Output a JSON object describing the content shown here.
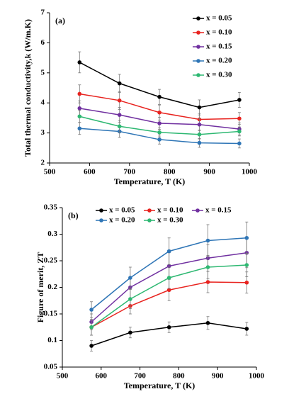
{
  "chart_data": [
    {
      "type": "line",
      "annotation": "(a)",
      "x_label": "Temperature,  T (K)",
      "y_label": "Total thermal conductivity,k  (W/m.K)",
      "x": [
        575,
        675,
        775,
        875,
        975
      ],
      "xlim": [
        500,
        1000
      ],
      "xticks": [
        500,
        600,
        700,
        800,
        900,
        1000
      ],
      "ylim": [
        2,
        7
      ],
      "yticks": [
        2,
        3,
        4,
        5,
        6,
        7
      ],
      "legend": "upper right",
      "series": [
        {
          "name": "x = 0.05",
          "color": "#000000",
          "values": [
            5.35,
            4.65,
            4.2,
            3.85,
            4.1
          ],
          "errors": [
            0.35,
            0.3,
            0.25,
            0.25,
            0.25
          ]
        },
        {
          "name": "x = 0.10",
          "color": "#e8231f",
          "values": [
            4.3,
            4.08,
            3.68,
            3.45,
            3.48
          ],
          "errors": [
            0.3,
            0.3,
            0.25,
            0.2,
            0.2
          ]
        },
        {
          "name": "x = 0.15",
          "color": "#7030a0",
          "values": [
            3.82,
            3.6,
            3.32,
            3.28,
            3.13
          ],
          "errors": [
            0.25,
            0.25,
            0.2,
            0.2,
            0.2
          ]
        },
        {
          "name": "x = 0.20",
          "color": "#2e75b6",
          "values": [
            3.15,
            3.05,
            2.78,
            2.67,
            2.65
          ],
          "errors": [
            0.2,
            0.2,
            0.15,
            0.15,
            0.15
          ]
        },
        {
          "name": "x = 0.30",
          "color": "#2eb872",
          "values": [
            3.55,
            3.22,
            3.02,
            2.95,
            3.05
          ],
          "errors": [
            0.2,
            0.2,
            0.15,
            0.15,
            0.15
          ]
        }
      ]
    },
    {
      "type": "line",
      "annotation": "(b)",
      "x_label": "Temperature,  T (K)",
      "y_label": "Figure of merit,  ZT",
      "x": [
        575,
        675,
        775,
        875,
        975
      ],
      "xlim": [
        500,
        1000
      ],
      "xticks": [
        500,
        600,
        700,
        800,
        900,
        1000
      ],
      "ylim": [
        0.05,
        0.35
      ],
      "yticks": [
        0.05,
        0.1,
        0.15,
        0.2,
        0.25,
        0.3,
        0.35
      ],
      "legend": "upper center",
      "series": [
        {
          "name": "x = 0.05",
          "color": "#000000",
          "values": [
            0.09,
            0.115,
            0.125,
            0.133,
            0.122
          ],
          "errors": [
            0.01,
            0.01,
            0.01,
            0.012,
            0.012
          ]
        },
        {
          "name": "x = 0.10",
          "color": "#e8231f",
          "values": [
            0.125,
            0.165,
            0.195,
            0.21,
            0.209
          ],
          "errors": [
            0.015,
            0.015,
            0.02,
            0.02,
            0.02
          ]
        },
        {
          "name": "x = 0.15",
          "color": "#7030a0",
          "values": [
            0.135,
            0.2,
            0.24,
            0.255,
            0.265
          ],
          "errors": [
            0.015,
            0.02,
            0.025,
            0.025,
            0.028
          ]
        },
        {
          "name": "x = 0.20",
          "color": "#2e75b6",
          "values": [
            0.158,
            0.218,
            0.268,
            0.288,
            0.293
          ],
          "errors": [
            0.015,
            0.02,
            0.025,
            0.03,
            0.03
          ]
        },
        {
          "name": "x = 0.30",
          "color": "#2eb872",
          "values": [
            0.125,
            0.178,
            0.218,
            0.238,
            0.242
          ],
          "errors": [
            0.015,
            0.018,
            0.02,
            0.022,
            0.022
          ]
        }
      ]
    }
  ]
}
